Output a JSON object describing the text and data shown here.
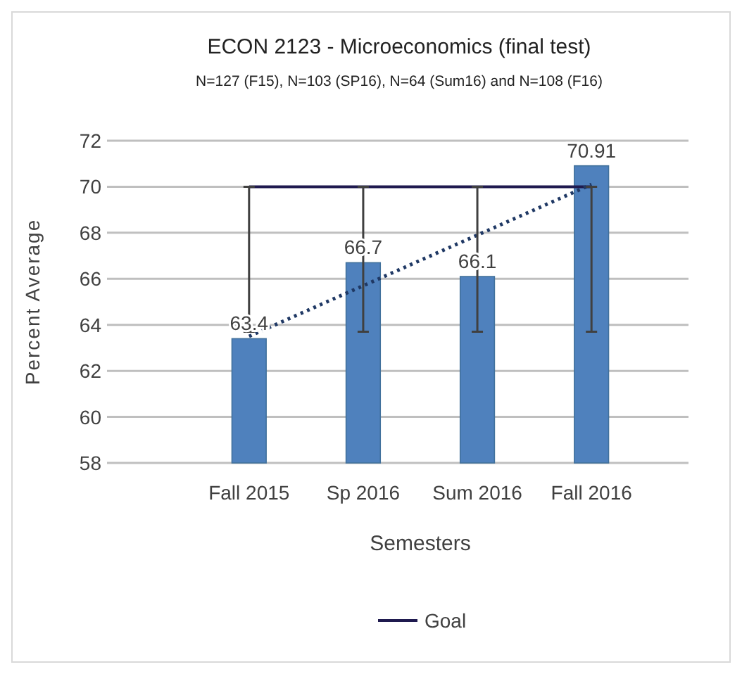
{
  "chart_data": {
    "type": "bar",
    "title": "ECON 2123 - Microeconomics (final test)",
    "subtitle": "N=127 (F15), N=103  (SP16), N=64 (Sum16) and N=108 (F16)",
    "xlabel": "Semesters",
    "ylabel": "Percent Average",
    "categories": [
      "Fall 2015",
      "Sp 2016",
      "Sum 2016",
      "Fall 2016"
    ],
    "series": [
      {
        "color": "#4f81bd",
        "values": [
          63.4,
          66.7,
          66.1,
          70.91
        ],
        "data_labels": true
      },
      {
        "type": "line",
        "name": "Goal",
        "color": "#1f1a4f",
        "values": [
          70,
          70,
          70,
          70
        ],
        "errors": [
          [
            63.7,
            70
          ],
          [
            63.7,
            70
          ],
          [
            63.7,
            70
          ],
          [
            63.7,
            70
          ]
        ],
        "line_style": "solid",
        "marker": "none"
      },
      {
        "type": "line",
        "color": "#1f3864",
        "values": [
          63.5,
          65.7,
          67.9,
          70.1
        ],
        "line_style": "dotted",
        "marker": "none"
      }
    ],
    "ylim": [
      58,
      72
    ],
    "yticks": [
      58,
      60,
      62,
      64,
      66,
      68,
      70,
      72
    ],
    "grid": "y",
    "legend": "bottom"
  }
}
